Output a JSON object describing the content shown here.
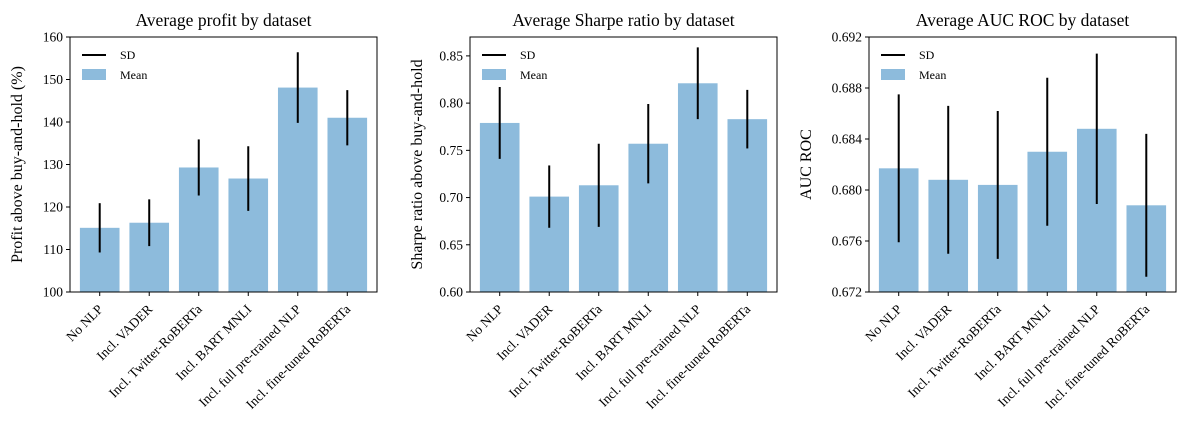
{
  "chart_data": [
    {
      "type": "bar",
      "title": "Average profit by dataset",
      "ylabel": "Profit above buy-and-hold (%)",
      "xlabel": "",
      "ylim": [
        100,
        160
      ],
      "yticks": [
        100,
        110,
        120,
        130,
        140,
        150,
        160
      ],
      "categories": [
        "No NLP",
        "Incl. VADER",
        "Incl. Twitter-RoBERTa",
        "Incl. BART MNLI",
        "Incl. full pre-trained NLP",
        "Incl. fine-tuned RoBERTa"
      ],
      "series": [
        {
          "name": "Mean",
          "values": [
            115.1,
            116.3,
            129.3,
            126.7,
            148.1,
            141.0
          ]
        },
        {
          "name": "SD",
          "values": [
            5.8,
            5.5,
            6.6,
            7.6,
            8.3,
            6.5
          ]
        }
      ],
      "grid": false,
      "legend_position": "top-left"
    },
    {
      "type": "bar",
      "title": "Average Sharpe ratio by dataset",
      "ylabel": "Sharpe ratio above buy-and-hold",
      "xlabel": "",
      "ylim": [
        0.6,
        0.87
      ],
      "yticks": [
        0.6,
        0.65,
        0.7,
        0.75,
        0.8,
        0.85
      ],
      "categories": [
        "No NLP",
        "Incl. VADER",
        "Incl. Twitter-RoBERTa",
        "Incl. BART MNLI",
        "Incl. full pre-trained NLP",
        "Incl. fine-tuned RoBERTa"
      ],
      "series": [
        {
          "name": "Mean",
          "values": [
            0.779,
            0.701,
            0.713,
            0.757,
            0.821,
            0.783
          ]
        },
        {
          "name": "SD",
          "values": [
            0.038,
            0.033,
            0.044,
            0.042,
            0.038,
            0.031
          ]
        }
      ],
      "grid": false,
      "legend_position": "top-left"
    },
    {
      "type": "bar",
      "title": "Average AUC ROC by dataset",
      "ylabel": "AUC ROC",
      "xlabel": "",
      "ylim": [
        0.672,
        0.692
      ],
      "yticks": [
        "0.672",
        "0.676",
        "0.680",
        "0.684",
        "0.688",
        "0.692"
      ],
      "categories": [
        "No NLP",
        "Incl. VADER",
        "Incl. Twitter-RoBERTa",
        "Incl. BART MNLI",
        "Incl. full pre-trained NLP",
        "Incl. fine-tuned RoBERTa"
      ],
      "series": [
        {
          "name": "Mean",
          "values": [
            0.6817,
            0.6808,
            0.6804,
            0.683,
            0.6848,
            0.6788
          ]
        },
        {
          "name": "SD",
          "values": [
            0.0058,
            0.0058,
            0.0058,
            0.0058,
            0.0059,
            0.0056
          ]
        }
      ],
      "grid": false,
      "legend_position": "top-left"
    }
  ],
  "colors": {
    "bar": "#8dbbdc",
    "error": "#000000",
    "axis": "#000000"
  }
}
